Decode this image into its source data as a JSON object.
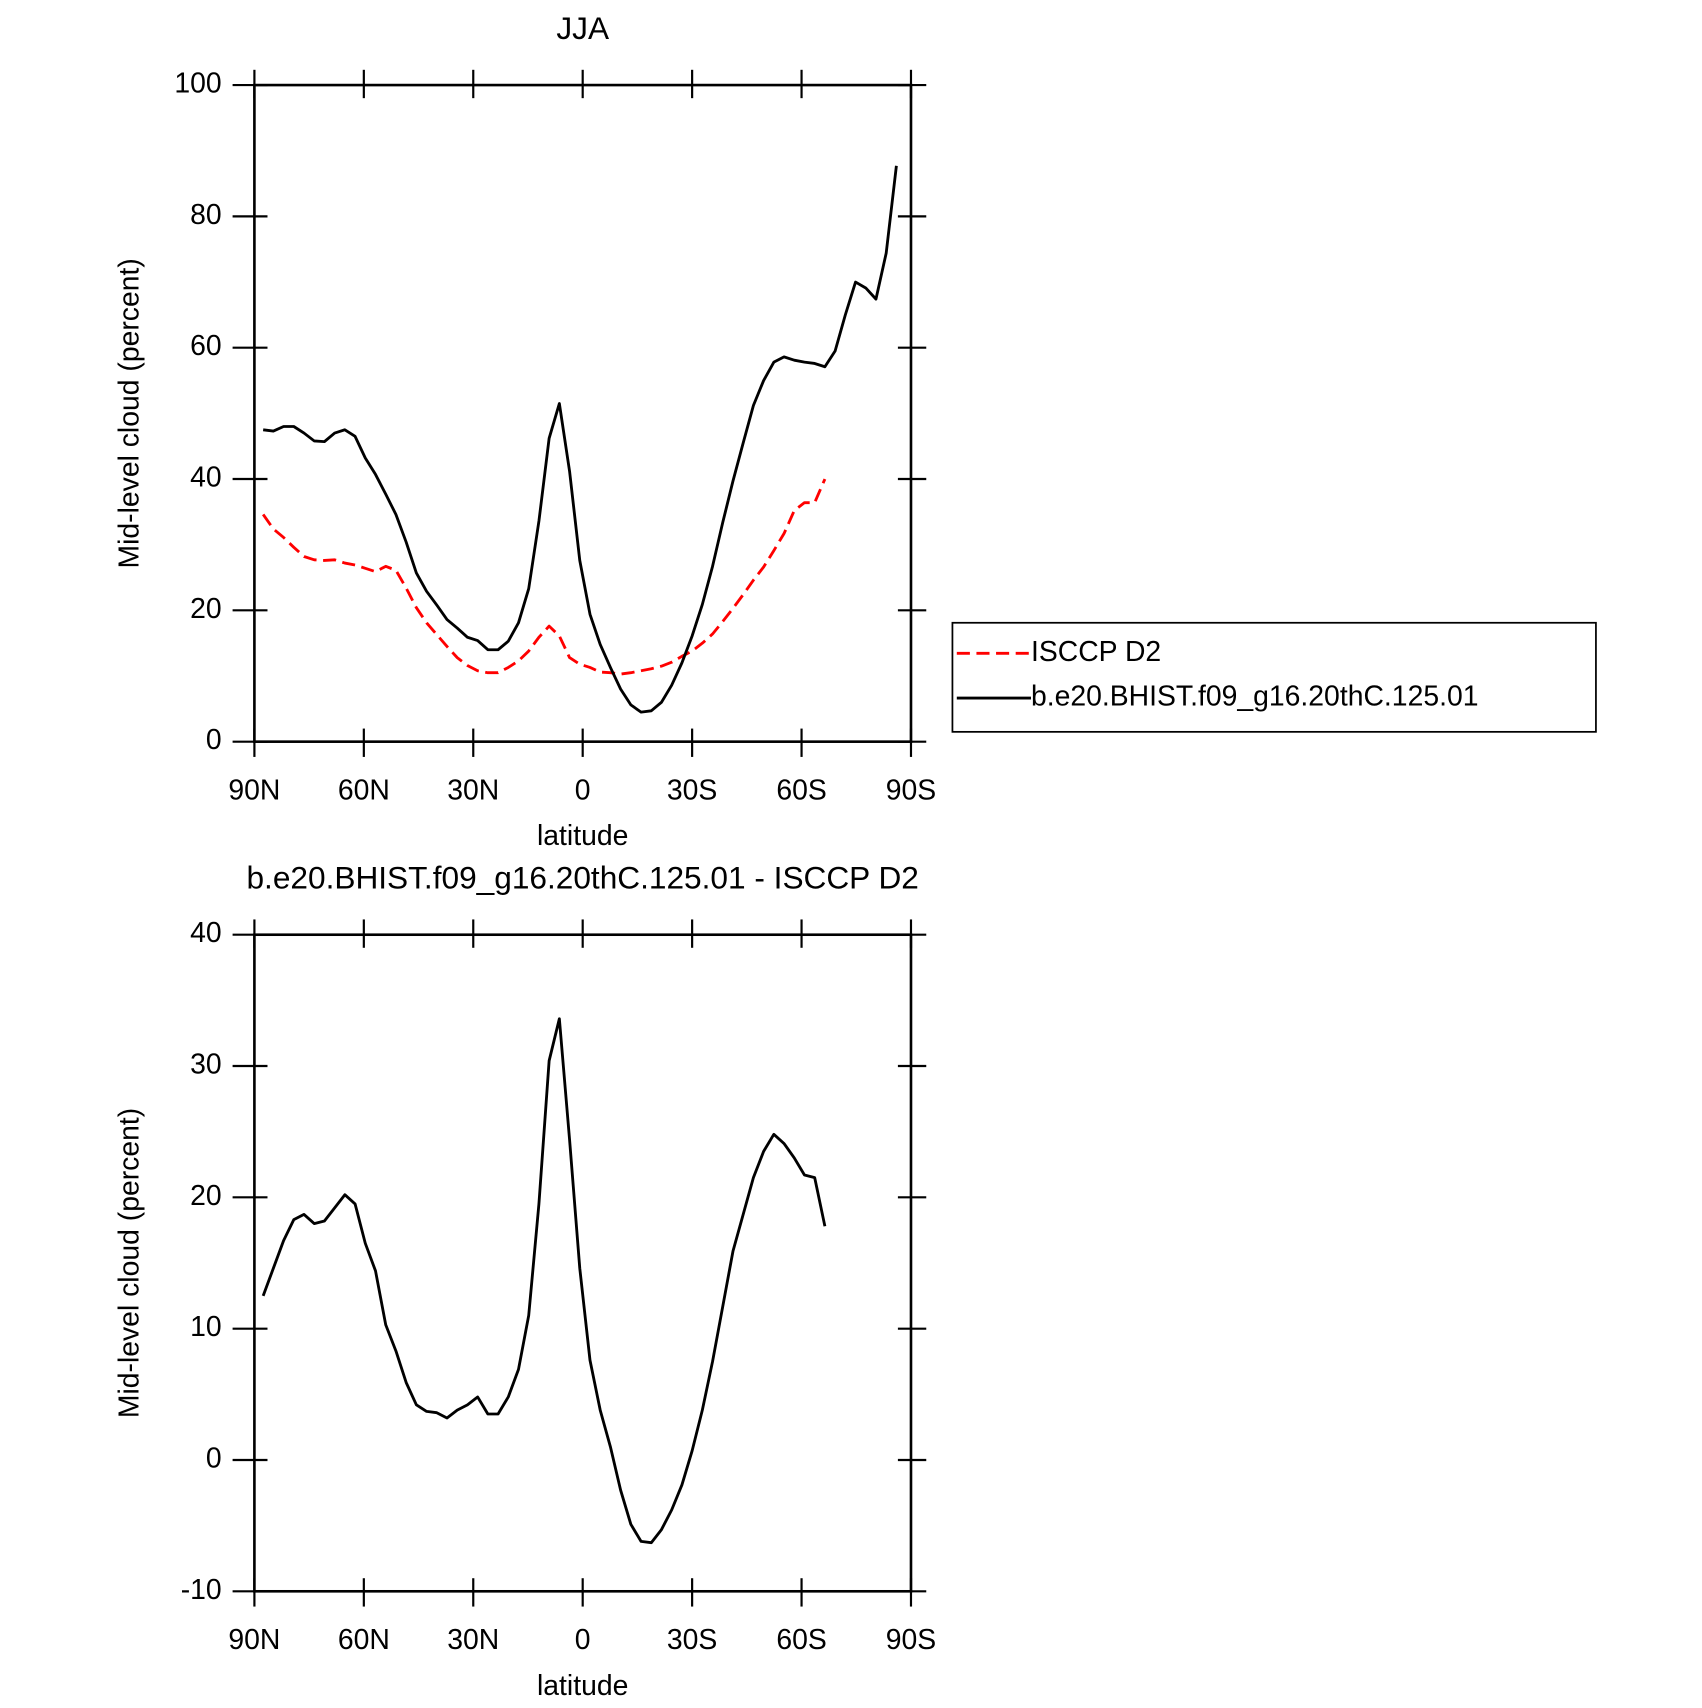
{
  "chart_data": [
    {
      "type": "line",
      "title": "JJA",
      "ylabel": "Mid-level cloud (percent)",
      "xlabel": "latitude",
      "x": [
        87.6,
        84.8,
        82,
        79.2,
        76.4,
        73.6,
        70.8,
        68,
        65.2,
        62.4,
        59.6,
        56.8,
        54,
        51.2,
        48.4,
        45.6,
        42.8,
        40,
        37.2,
        34.4,
        31.6,
        28.8,
        26,
        23.2,
        20.4,
        17.6,
        14.8,
        12,
        9.2,
        6.4,
        3.6,
        0.8,
        -2,
        -4.8,
        -7.6,
        -10.4,
        -13.2,
        -16,
        -18.8,
        -21.6,
        -24.4,
        -27.2,
        -30,
        -32.8,
        -35.6,
        -38.4,
        -41.2,
        -44,
        -46.8,
        -49.6,
        -52.4,
        -55.2,
        -58,
        -60.8,
        -63.6,
        -66.4,
        -69.2,
        -72,
        -74.8,
        -77.6,
        -80.4,
        -83.2,
        -86
      ],
      "series": [
        {
          "name": "ISCCP D2",
          "color": "#ff0000",
          "dashed": true,
          "values": [
            34.6,
            32.4,
            31.1,
            29.6,
            28.2,
            27.7,
            27.6,
            27.7,
            27.2,
            26.9,
            26.4,
            25.9,
            26.7,
            26.1,
            23.4,
            20.4,
            18.1,
            16.3,
            14.5,
            12.8,
            11.6,
            10.8,
            10.5,
            10.5,
            11.3,
            12.3,
            13.8,
            15.9,
            17.6,
            16.1,
            12.8,
            11.8,
            11.3,
            10.6,
            10.5,
            10.3,
            10.5,
            10.8,
            11.1,
            11.5,
            12.1,
            13,
            13.8,
            15,
            16.4,
            18.3,
            20.3,
            22.4,
            24.6,
            26.6,
            29.1,
            31.7,
            35.2,
            36.4,
            36.4,
            40,
            null,
            null,
            null,
            null,
            null,
            null,
            null
          ]
        },
        {
          "name": "b.e20.BHIST.f09_g16.20thC.125.01",
          "color": "#000000",
          "dashed": false,
          "values": [
            47.5,
            47.3,
            48,
            48,
            47,
            45.8,
            45.7,
            47,
            47.5,
            46.5,
            43.2,
            40.7,
            37.7,
            34.6,
            30.4,
            25.7,
            22.9,
            20.8,
            18.6,
            17.3,
            15.9,
            15.4,
            14,
            14,
            15.3,
            18.1,
            23.3,
            33.6,
            46.2,
            51.5,
            41.2,
            27.6,
            19.4,
            14.8,
            11.3,
            8,
            5.6,
            4.5,
            4.7,
            6,
            8.6,
            12,
            16.1,
            20.9,
            26.7,
            33.4,
            39.7,
            45.5,
            51.2,
            55,
            57.8,
            58.6,
            58.1,
            57.8,
            57.6,
            57.1,
            59.5,
            65,
            70,
            69.1,
            67.4,
            74.4,
            87.7
          ]
        }
      ],
      "xlim": [
        90,
        -90
      ],
      "xticks": [
        {
          "value": 90,
          "label": "90N"
        },
        {
          "value": 60,
          "label": "60N"
        },
        {
          "value": 30,
          "label": "30N"
        },
        0,
        {
          "value": -30,
          "label": "30S"
        },
        {
          "value": -60,
          "label": "60S"
        },
        {
          "value": -90,
          "label": "90S"
        }
      ],
      "ylim": [
        0,
        100
      ],
      "yticks": [
        0,
        20,
        40,
        60,
        80,
        100
      ],
      "legend": "right"
    },
    {
      "type": "line",
      "title": "b.e20.BHIST.f09_g16.20thC.125.01 - ISCCP D2",
      "ylabel": "Mid-level cloud (percent)",
      "xlabel": "latitude",
      "x": [
        87.6,
        84.8,
        82,
        79.2,
        76.4,
        73.6,
        70.8,
        68,
        65.2,
        62.4,
        59.6,
        56.8,
        54,
        51.2,
        48.4,
        45.6,
        42.8,
        40,
        37.2,
        34.4,
        31.6,
        28.8,
        26,
        23.2,
        20.4,
        17.6,
        14.8,
        12,
        9.2,
        6.4,
        3.6,
        0.8,
        -2,
        -4.8,
        -7.6,
        -10.4,
        -13.2,
        -16,
        -18.8,
        -21.6,
        -24.4,
        -27.2,
        -30,
        -32.8,
        -35.6,
        -38.4,
        -41.2,
        -44,
        -46.8,
        -49.6,
        -52.4,
        -55.2,
        -58,
        -60.8,
        -63.6,
        -66.4
      ],
      "values": [
        12.5,
        14.6,
        16.7,
        18.3,
        18.7,
        18,
        18.2,
        19.2,
        20.2,
        19.5,
        16.5,
        14.4,
        10.3,
        8.3,
        5.9,
        4.2,
        3.7,
        3.6,
        3.2,
        3.8,
        4.2,
        4.8,
        3.5,
        3.5,
        4.8,
        6.9,
        11,
        19.5,
        30.4,
        33.6,
        24.4,
        14.6,
        7.6,
        3.8,
        1,
        -2.3,
        -4.9,
        -6.2,
        -6.3,
        -5.3,
        -3.8,
        -1.9,
        0.7,
        3.8,
        7.5,
        11.7,
        15.9,
        18.7,
        21.5,
        23.5,
        24.8,
        24.1,
        23,
        21.7,
        21.5,
        17.8
      ],
      "color": "#000000",
      "xlim": [
        90,
        -90
      ],
      "xticks": [
        {
          "value": 90,
          "label": "90N"
        },
        {
          "value": 60,
          "label": "60N"
        },
        {
          "value": 30,
          "label": "30N"
        },
        0,
        {
          "value": -30,
          "label": "30S"
        },
        {
          "value": -60,
          "label": "60S"
        },
        {
          "value": -90,
          "label": "90S"
        }
      ],
      "ylim": [
        -10,
        40
      ],
      "yticks": [
        -10,
        0,
        10,
        20,
        30,
        40
      ]
    }
  ]
}
